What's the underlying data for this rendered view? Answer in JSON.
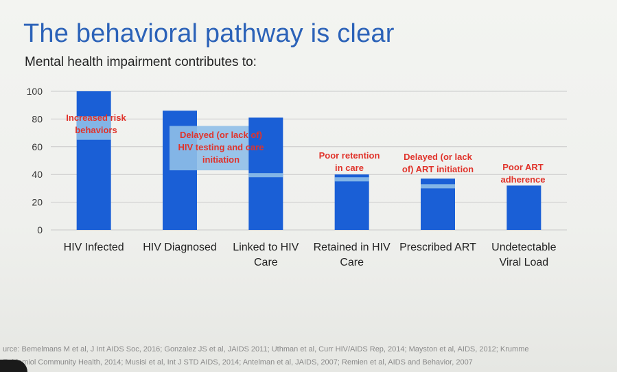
{
  "slide": {
    "title": "The behavioral pathway is clear",
    "subtitle": "Mental health impairment contributes to:",
    "source_line1": "urce: Bemelmans M et al, J Int AIDS Soc, 2016; Gonzalez JS et al, JAIDS 2011; Uthman et al, Curr HIV/AIDS Rep, 2014; Mayston et al, AIDS, 2012; Krumme",
    "source_line2": "Epidemiol Community Health, 2014; Musisi et al, Int J STD AIDS, 2014; Antelman et al, JAIDS, 2007; Remien et al, AIDS and Behavior, 2007"
  },
  "colors": {
    "bar": "#1a5fd6",
    "highlight": "#8fbfe8",
    "annotation": "#e0332b",
    "grid": "#c9c9c9",
    "title": "#2b62b8"
  },
  "chart_data": {
    "type": "bar",
    "categories": [
      [
        "HIV Infected"
      ],
      [
        "HIV Diagnosed"
      ],
      [
        "Linked to HIV",
        "Care"
      ],
      [
        "Retained in HIV",
        "Care"
      ],
      [
        "Prescribed ART"
      ],
      [
        "Undetectable",
        "Viral Load"
      ]
    ],
    "values": [
      100,
      86,
      81,
      40,
      37,
      32
    ],
    "ylim": [
      0,
      100
    ],
    "yticks": [
      0,
      20,
      40,
      60,
      80,
      100
    ],
    "grid": true,
    "legend": "none",
    "annotations": [
      {
        "lines": [
          "Increased risk",
          "behaviors"
        ],
        "highlight_range": [
          65,
          82
        ]
      },
      {
        "lines": [
          "Delayed (or lack of)",
          "HIV testing and care",
          "initiation"
        ],
        "highlight_range": [
          43,
          75
        ]
      },
      {
        "lines": [
          "Poor retention",
          "in care"
        ],
        "highlight_range": [
          38,
          41
        ]
      },
      {
        "lines": [
          "Delayed (or lack",
          "of) ART initiation"
        ],
        "highlight_range": [
          35,
          38
        ]
      },
      {
        "lines": [
          "Poor ART",
          "adherence"
        ],
        "highlight_range": [
          30,
          33
        ]
      }
    ]
  }
}
